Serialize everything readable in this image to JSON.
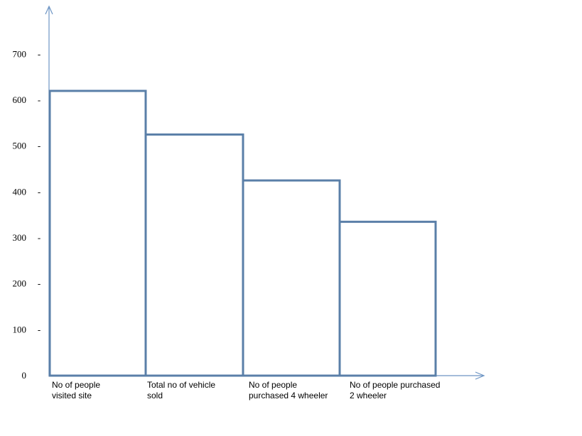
{
  "chart_data": {
    "type": "bar",
    "title": "",
    "xlabel": "",
    "ylabel": "",
    "categories": [
      [
        "No of people",
        "visited site"
      ],
      [
        "Total no of vehicle",
        "sold"
      ],
      [
        "No of people",
        "purchased  4 wheeler"
      ],
      [
        "No of people purchased",
        "2 wheeler"
      ]
    ],
    "values": [
      620,
      525,
      425,
      335
    ],
    "yticks": [
      0,
      100,
      200,
      300,
      400,
      500,
      600,
      700
    ],
    "ytick_labels": [
      "0",
      "100",
      "200",
      "300",
      "400",
      "500",
      "600",
      "700"
    ],
    "ytick_marker": "-",
    "ylim": [
      0,
      700
    ],
    "grid": false,
    "legend": "none",
    "colors": {
      "bar_outline": "#5a7fa8",
      "axis": "#6d95c4",
      "bar_fill": "#ffffff"
    }
  }
}
